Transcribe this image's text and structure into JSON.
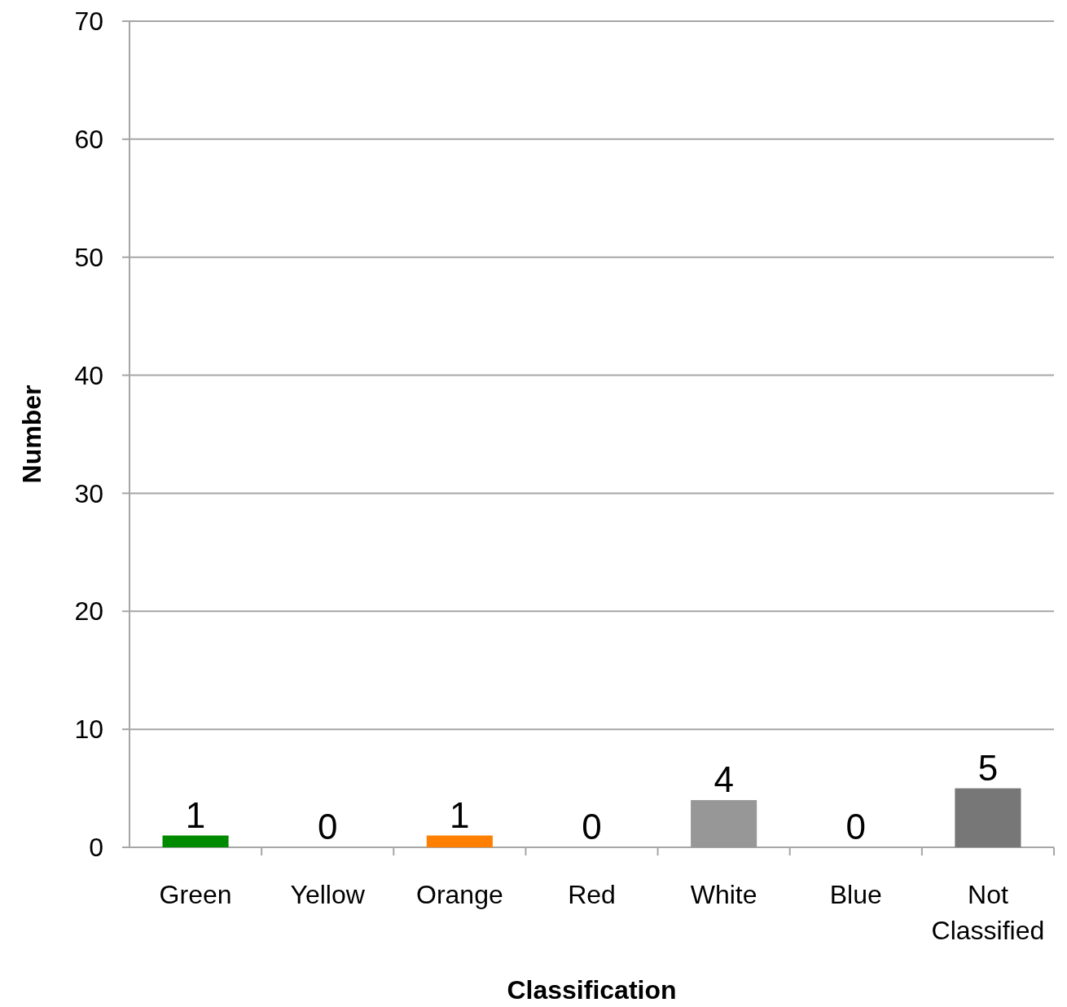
{
  "chart_data": {
    "type": "bar",
    "xlabel": "Classification",
    "ylabel": "Number",
    "categories": [
      "Green",
      "Yellow",
      "Orange",
      "Red",
      "White",
      "Blue",
      "Not Classified"
    ],
    "values": [
      1,
      0,
      1,
      0,
      4,
      0,
      5
    ],
    "colors": [
      "#008a00",
      null,
      "#ff8000",
      null,
      "#979797",
      null,
      "#777777"
    ],
    "ylim": [
      0,
      70
    ],
    "yticks": [
      0,
      10,
      20,
      30,
      40,
      50,
      60,
      70
    ],
    "grid": "y",
    "data_labels": true
  }
}
